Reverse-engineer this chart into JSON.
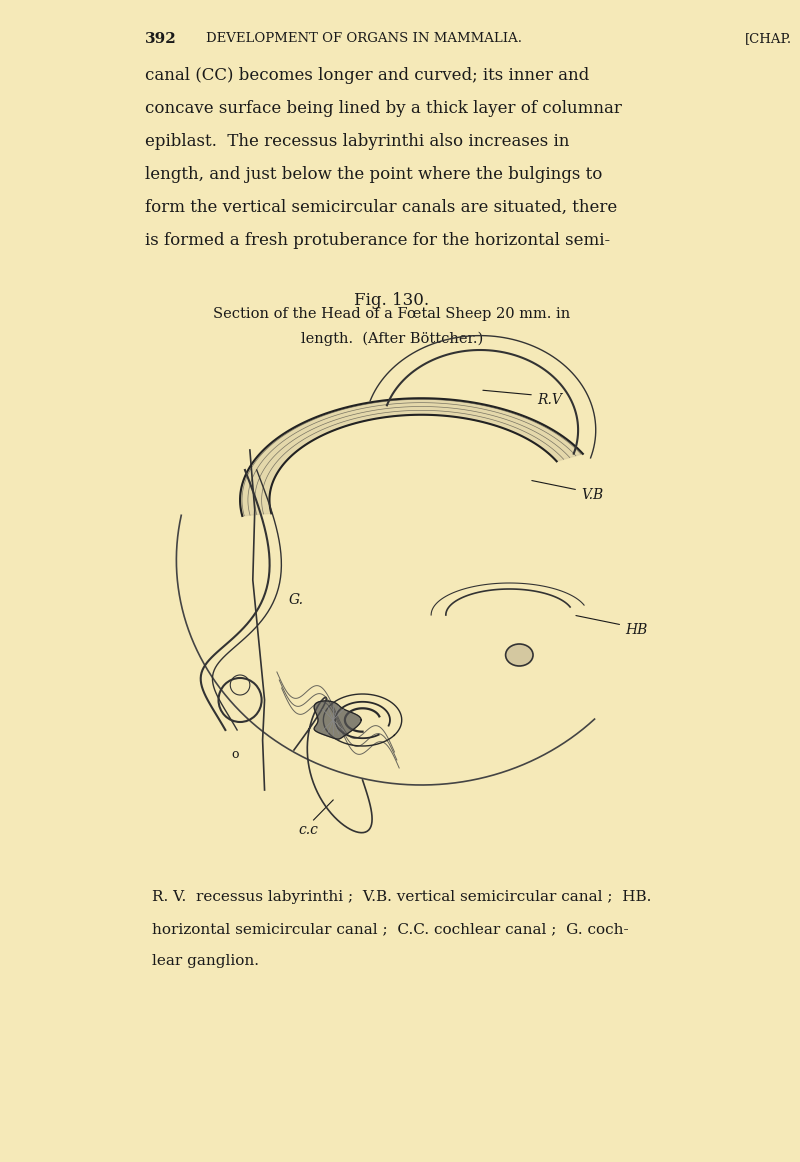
{
  "bg_color": "#f5e9b8",
  "page_number": "392",
  "header_text": "DEVELOPMENT OF ORGANS IN MAMMALIA.",
  "header_right": "[CHAP.",
  "body_text_lines": [
    "canal (CC) becomes longer and curved; its inner and",
    "concave surface being lined by a thick layer of columnar",
    "epiblast.  The recessus labyrinthi also increases in",
    "length, and just below the point where the bulgings to",
    "form the vertical semicircular canals are situated, there",
    "is formed a fresh protuberance for the horizontal semi-"
  ],
  "fig_label": "Fig. 130.",
  "caption_line1": "Section of the Head of a Fœtal Sheep 20 mm. in",
  "caption_line2": "length.  (After Böttcher.)",
  "legend_line1": "R. V.  recessus labyrinthi ;  V.B. vertical semicircular canal ;  HB.",
  "legend_line2": "horizontal semicircular canal ;  C.C. cochlear canal ;  G. coch-",
  "legend_line3": "lear ganglion.",
  "text_color": "#1a1a1a",
  "ink_color": "#2a2a2a"
}
